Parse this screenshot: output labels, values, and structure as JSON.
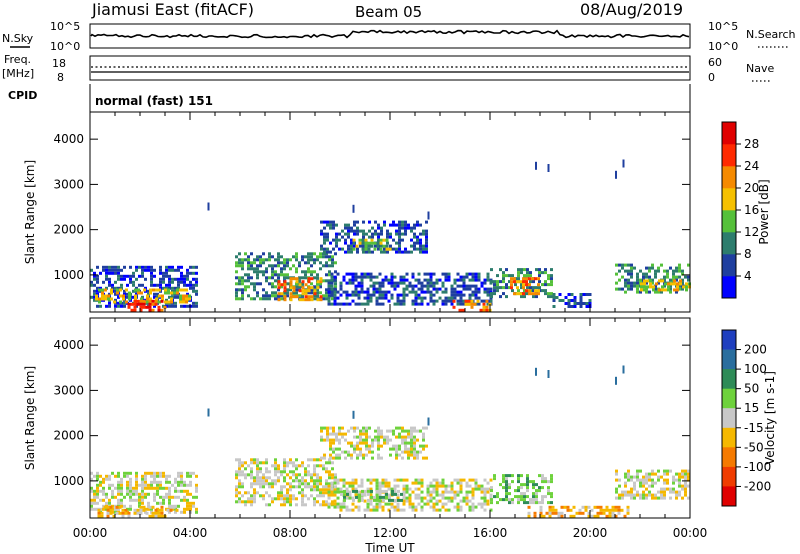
{
  "header": {
    "title": "Jiamusi East (fitACF)",
    "beam": "Beam 05",
    "date": "08/Aug/2019"
  },
  "nsky": {
    "label": "N.Sky",
    "tick_top": "10^5",
    "tick_bottom": "10^0",
    "right_label": "N.Search",
    "right_tick_top": "10^5",
    "right_tick_bottom": "10^0"
  },
  "freq": {
    "label_line1": "Freq.",
    "label_line2": "[MHz]",
    "tick_top": "18",
    "tick_bottom": "8",
    "right_label": "Nave",
    "right_tick_top": "60",
    "right_tick_bottom": "0"
  },
  "cpid": {
    "label": "CPID",
    "value": "normal (fast) 151"
  },
  "chart_data": [
    {
      "type": "heatmap",
      "name": "power",
      "ylabel": "Slant Range [km]",
      "yticks": [
        "1000",
        "2000",
        "3000",
        "4000"
      ],
      "ylim": [
        180,
        4600
      ],
      "xlim": [
        0,
        24
      ],
      "xticks": [
        "00:00",
        "04:00",
        "08:00",
        "12:00",
        "16:00",
        "20:00",
        "00:00"
      ],
      "colorbar": {
        "label": "Power [dB]",
        "ticks": [
          "4",
          "8",
          "12",
          "16",
          "20",
          "24",
          "28"
        ],
        "colors": [
          "#0000ff",
          "#1f3f9f",
          "#2d7d6d",
          "#55c03a",
          "#f5c000",
          "#f58a00",
          "#ff2a00",
          "#e00000"
        ]
      },
      "regions": [
        {
          "t0": 0.0,
          "t1": 4.3,
          "r0": 280,
          "r1": 1200,
          "level": 1
        },
        {
          "t0": 0.2,
          "t1": 4.0,
          "r0": 400,
          "r1": 700,
          "level": 4
        },
        {
          "t0": 1.5,
          "t1": 3.0,
          "r0": 250,
          "r1": 450,
          "level": 6
        },
        {
          "t0": 5.8,
          "t1": 9.8,
          "r0": 500,
          "r1": 1500,
          "level": 2
        },
        {
          "t0": 7.5,
          "t1": 9.3,
          "r0": 450,
          "r1": 950,
          "level": 5
        },
        {
          "t0": 9.2,
          "t1": 13.5,
          "r0": 1500,
          "r1": 2200,
          "level": 1
        },
        {
          "t0": 10.5,
          "t1": 12.0,
          "r0": 1550,
          "r1": 1800,
          "level": 3
        },
        {
          "t0": 9.5,
          "t1": 16.0,
          "r0": 380,
          "r1": 1050,
          "level": 1
        },
        {
          "t0": 14.5,
          "t1": 16.0,
          "r0": 250,
          "r1": 450,
          "level": 5
        },
        {
          "t0": 16.0,
          "t1": 18.5,
          "r0": 500,
          "r1": 1150,
          "level": 2
        },
        {
          "t0": 16.8,
          "t1": 18.0,
          "r0": 600,
          "r1": 950,
          "level": 5
        },
        {
          "t0": 18.5,
          "t1": 20.0,
          "r0": 280,
          "r1": 600,
          "level": 1
        },
        {
          "t0": 21.0,
          "t1": 24.0,
          "r0": 600,
          "r1": 1250,
          "level": 2
        },
        {
          "t0": 22.0,
          "t1": 24.0,
          "r0": 650,
          "r1": 900,
          "level": 4
        }
      ]
    },
    {
      "type": "heatmap",
      "name": "velocity",
      "ylabel": "Slant Range [km]",
      "yticks": [
        "1000",
        "2000",
        "3000",
        "4000"
      ],
      "ylim": [
        180,
        4600
      ],
      "xlim": [
        0,
        24
      ],
      "xticks": [
        "00:00",
        "04:00",
        "08:00",
        "12:00",
        "16:00",
        "20:00",
        "00:00"
      ],
      "xlabel": "Time UT",
      "colorbar": {
        "label": "Velocity [m s-1]",
        "ticks": [
          "200",
          "100",
          "50",
          "15",
          "-15",
          "-50",
          "-100",
          "-200"
        ],
        "colors": [
          "#1f3fbf",
          "#2a6e9e",
          "#2e8b57",
          "#6ed23c",
          "#c8c8c8",
          "#f5b800",
          "#f57a00",
          "#f03c00",
          "#e00000"
        ]
      },
      "regions": [
        {
          "t0": 0.0,
          "t1": 4.3,
          "r0": 280,
          "r1": 1200,
          "level": 4
        },
        {
          "t0": 0.3,
          "t1": 3.5,
          "r0": 250,
          "r1": 450,
          "level": 5
        },
        {
          "t0": 5.8,
          "t1": 9.8,
          "r0": 500,
          "r1": 1500,
          "level": 4
        },
        {
          "t0": 9.2,
          "t1": 13.5,
          "r0": 1500,
          "r1": 2200,
          "level": 4
        },
        {
          "t0": 9.5,
          "t1": 16.0,
          "r0": 380,
          "r1": 1050,
          "level": 4
        },
        {
          "t0": 10.0,
          "t1": 12.5,
          "r0": 550,
          "r1": 800,
          "level": 3
        },
        {
          "t0": 16.0,
          "t1": 18.5,
          "r0": 500,
          "r1": 1150,
          "level": 3
        },
        {
          "t0": 17.5,
          "t1": 21.5,
          "r0": 230,
          "r1": 450,
          "level": 5
        },
        {
          "t0": 21.0,
          "t1": 24.0,
          "r0": 600,
          "r1": 1250,
          "level": 4
        }
      ]
    }
  ]
}
